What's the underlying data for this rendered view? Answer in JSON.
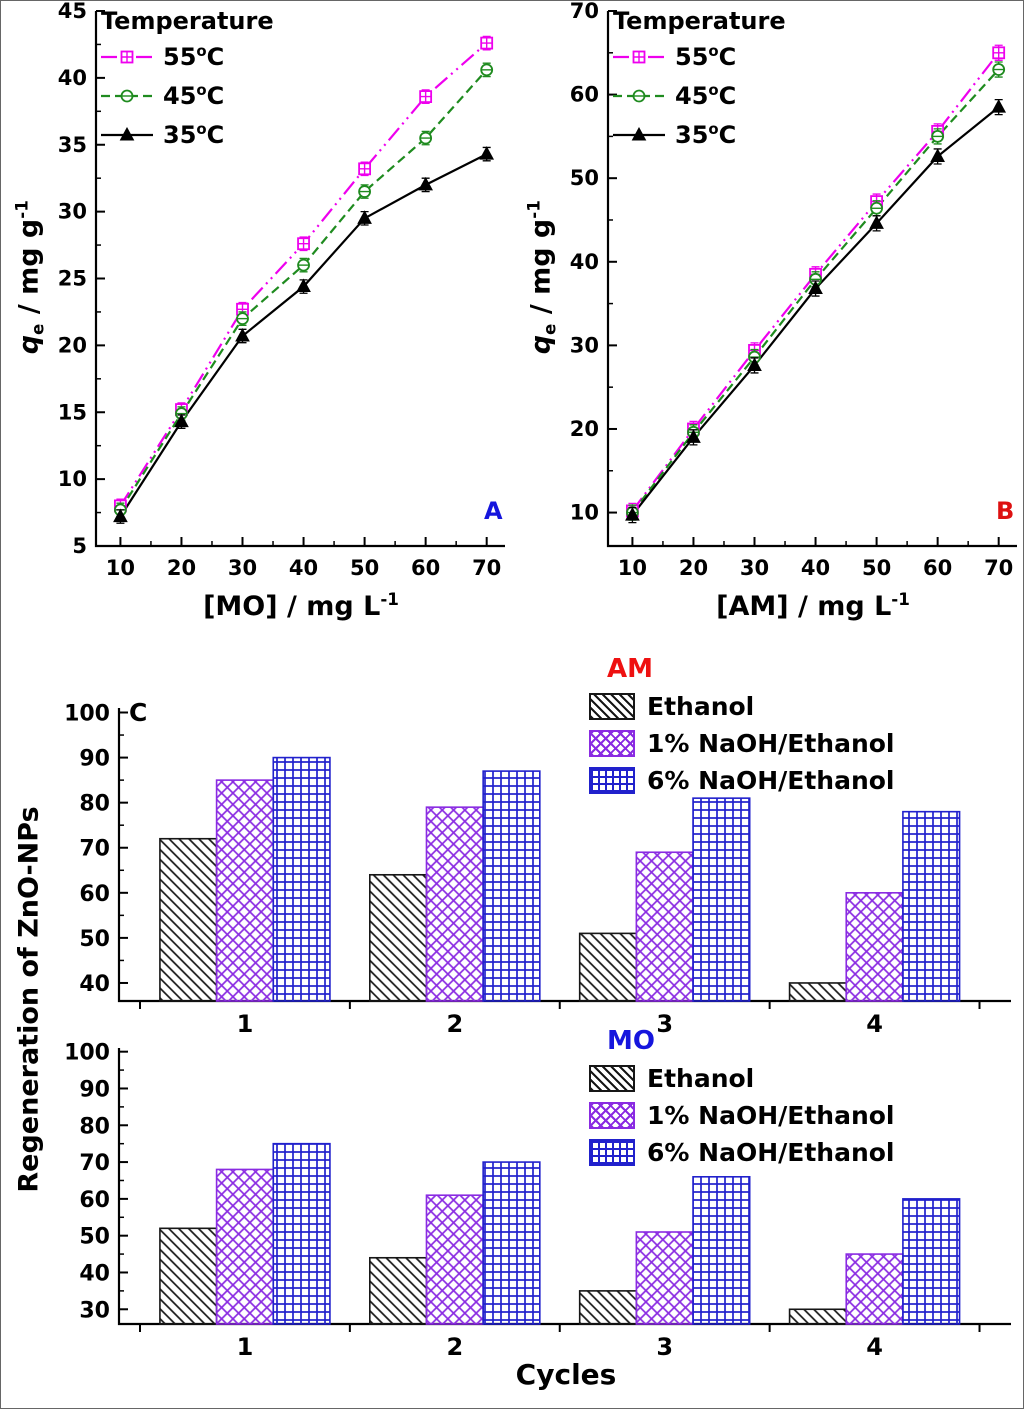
{
  "chart_data": [
    {
      "id": "A",
      "type": "line",
      "panel_label": "A",
      "panel_label_color": "#1515dd",
      "legend_title": "Temperature",
      "legend_position": "top-left",
      "xlabel": "[MO] / mg L^{-1}",
      "ylabel": "*q*_{e} /  mg g^{-1}",
      "xlim": [
        6,
        73
      ],
      "ylim": [
        5,
        45
      ],
      "xticks": [
        10,
        20,
        30,
        40,
        50,
        60,
        70
      ],
      "yticks": [
        5,
        10,
        15,
        20,
        25,
        30,
        35,
        40,
        45
      ],
      "error": 0.5,
      "x": [
        10,
        20,
        30,
        40,
        50,
        60,
        70
      ],
      "series": [
        {
          "name": "55^{o}C",
          "color": "#ee00ee",
          "line": "dashdotdot",
          "marker": "square-plus",
          "values": [
            8.0,
            15.2,
            22.7,
            27.6,
            33.2,
            38.6,
            42.6
          ]
        },
        {
          "name": "45^{o}C",
          "color": "#1f8b1f",
          "line": "dashed",
          "marker": "circle-line",
          "values": [
            7.7,
            14.9,
            22.0,
            26.0,
            31.5,
            35.5,
            40.6
          ]
        },
        {
          "name": "35^{o}C",
          "color": "#000000",
          "line": "solid",
          "marker": "triangle",
          "values": [
            7.2,
            14.3,
            20.7,
            24.4,
            29.5,
            32.0,
            34.3
          ]
        }
      ]
    },
    {
      "id": "B",
      "type": "line",
      "panel_label": "B",
      "panel_label_color": "#dd1111",
      "legend_title": "Temperature",
      "legend_position": "top-left",
      "xlabel": "[AM] / mg L^{-1}",
      "ylabel": "*q*_{e} /  mg g^{-1}",
      "xlim": [
        6,
        73
      ],
      "ylim": [
        6,
        70
      ],
      "xticks": [
        10,
        20,
        30,
        40,
        50,
        60,
        70
      ],
      "yticks": [
        10,
        20,
        30,
        40,
        50,
        60,
        70
      ],
      "error": 0.9,
      "x": [
        10,
        20,
        30,
        40,
        50,
        60,
        70
      ],
      "series": [
        {
          "name": "55^{o}C",
          "color": "#ee00ee",
          "line": "dashdotdot",
          "marker": "square-plus",
          "values": [
            10.2,
            20.0,
            29.4,
            38.5,
            47.2,
            55.6,
            65.0
          ]
        },
        {
          "name": "45^{o}C",
          "color": "#1f8b1f",
          "line": "dashed",
          "marker": "circle-line",
          "values": [
            10.0,
            19.6,
            28.6,
            37.9,
            46.4,
            55.0,
            63.0
          ]
        },
        {
          "name": "35^{o}C",
          "color": "#000000",
          "line": "solid",
          "marker": "triangle",
          "values": [
            9.7,
            19.0,
            27.6,
            36.8,
            44.6,
            52.6,
            58.5
          ]
        }
      ]
    },
    {
      "id": "AM",
      "type": "bar",
      "panel_label": "C",
      "title": "AM",
      "title_color": "#ee1111",
      "ylabel": "Regeneration of ZnO-NPs",
      "categories": [
        1,
        2,
        3,
        4
      ],
      "ylim": [
        36,
        101
      ],
      "yticks": [
        40,
        50,
        60,
        70,
        80,
        90,
        100
      ],
      "series": [
        {
          "name": "Ethanol",
          "color": "#161616",
          "hatch": "diagonal",
          "values": [
            72,
            64,
            51,
            40
          ]
        },
        {
          "name": "1% NaOH/Ethanol",
          "color": "#8a2be2",
          "hatch": "crosshatch",
          "values": [
            85,
            79,
            69,
            60
          ]
        },
        {
          "name": "6% NaOH/Ethanol",
          "color": "#2121cc",
          "hatch": "grid",
          "values": [
            90,
            87,
            81,
            78
          ]
        }
      ]
    },
    {
      "id": "MO",
      "type": "bar",
      "title": "MO",
      "title_color": "#1515dd",
      "xlabel": "Cycles",
      "categories": [
        1,
        2,
        3,
        4
      ],
      "ylim": [
        26,
        101
      ],
      "yticks": [
        30,
        40,
        50,
        60,
        70,
        80,
        90,
        100
      ],
      "series": [
        {
          "name": "Ethanol",
          "color": "#161616",
          "hatch": "diagonal",
          "values": [
            52,
            44,
            35,
            30
          ]
        },
        {
          "name": "1% NaOH/Ethanol",
          "color": "#8a2be2",
          "hatch": "crosshatch",
          "values": [
            68,
            61,
            51,
            45
          ]
        },
        {
          "name": "6% NaOH/Ethanol",
          "color": "#2121cc",
          "hatch": "grid",
          "values": [
            75,
            70,
            66,
            60
          ]
        }
      ]
    }
  ]
}
